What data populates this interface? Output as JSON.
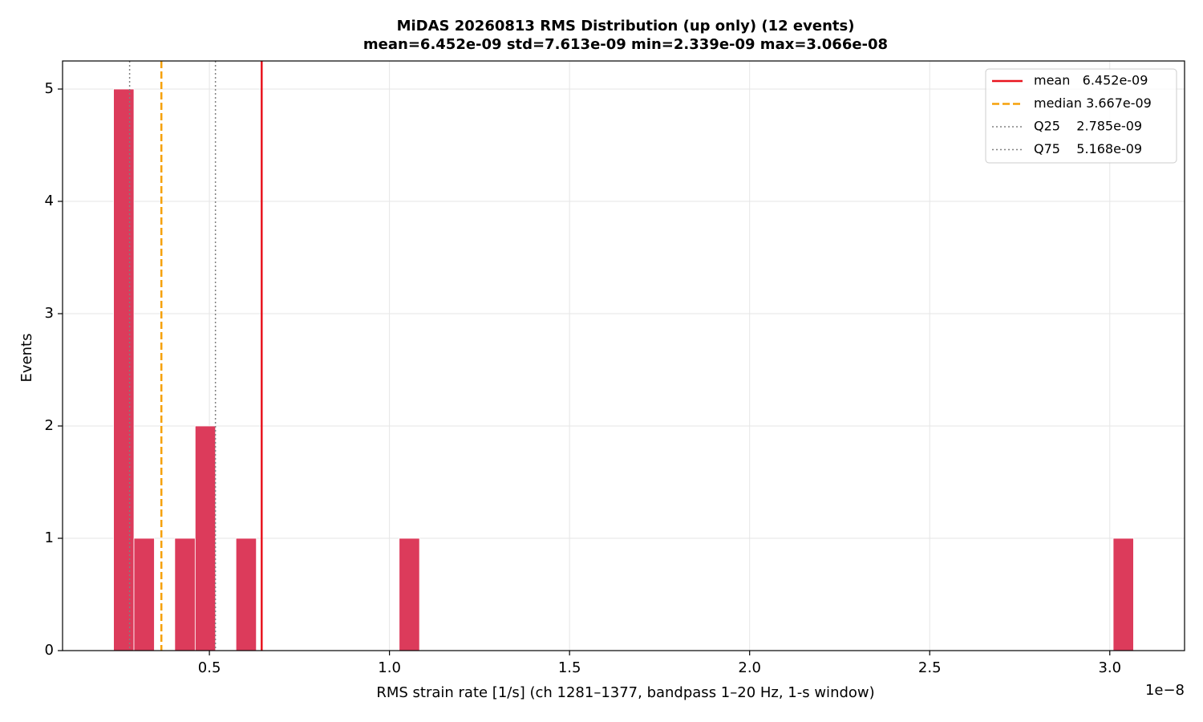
{
  "chart_data": {
    "type": "histogram",
    "title": "MiDAS 20260813  RMS Distribution  (up only)  (12 events)",
    "subtitle": "mean=6.452e-09  std=7.613e-09  min=2.339e-09  max=3.066e-08",
    "x_label": "RMS strain rate [1/s]  (ch 1281–1377, bandpass 1–20 Hz, 1-s window)",
    "x_offset_label": "1e−8",
    "y_label": "Events",
    "color": "#dc3b5b",
    "bins": [
      0.2339,
      0.2905,
      0.3472,
      0.4038,
      0.4605,
      0.5171,
      0.5738,
      0.6304,
      0.687,
      0.7437,
      0.8003,
      0.857,
      0.9136,
      0.9702,
      1.0269,
      1.0835,
      1.1402,
      1.1968,
      1.2535,
      1.3101,
      1.3667,
      1.4234,
      1.48,
      1.5367,
      1.5933,
      1.65,
      1.7066,
      1.7632,
      1.8199,
      1.8765,
      1.9332,
      1.9898,
      2.0464,
      2.1031,
      2.1597,
      2.2164,
      2.273,
      2.3296,
      2.3863,
      2.4429,
      2.4996,
      2.5562,
      2.6129,
      2.6695,
      2.7261,
      2.7828,
      2.8394,
      2.8961,
      2.9527,
      3.0094,
      3.066
    ],
    "values": [
      5,
      1,
      0,
      1,
      2,
      0,
      1,
      0,
      0,
      0,
      0,
      0,
      0,
      0,
      1,
      0,
      0,
      0,
      0,
      0,
      0,
      0,
      0,
      0,
      0,
      0,
      0,
      0,
      0,
      0,
      0,
      0,
      0,
      0,
      0,
      0,
      0,
      0,
      0,
      0,
      0,
      0,
      0,
      0,
      0,
      0,
      0,
      0,
      0,
      1
    ],
    "reference_lines": [
      {
        "name": "mean   6.452e-09",
        "value": 0.6452,
        "color": "#e8141e",
        "style": "solid"
      },
      {
        "name": "median 3.667e-09",
        "value": 0.3667,
        "color": "#f5a10a",
        "style": "dashed"
      },
      {
        "name": "Q25    2.785e-09",
        "value": 0.2785,
        "color": "#808080",
        "style": "dotted"
      },
      {
        "name": "Q75    5.168e-09",
        "value": 0.5168,
        "color": "#808080",
        "style": "dotted"
      }
    ],
    "xlim": [
      0.0923,
      3.2076
    ],
    "ylim": [
      0,
      5.25
    ],
    "xticks": [
      0.5,
      {
        "value": 1,
        "label": "1.0"
      },
      1.5,
      {
        "value": 2,
        "label": "2.0"
      },
      2.5,
      {
        "value": 3,
        "label": "3.0"
      }
    ],
    "yticks": [
      0,
      1,
      2,
      3,
      4,
      5
    ],
    "grid": true,
    "legend": "upper right"
  }
}
